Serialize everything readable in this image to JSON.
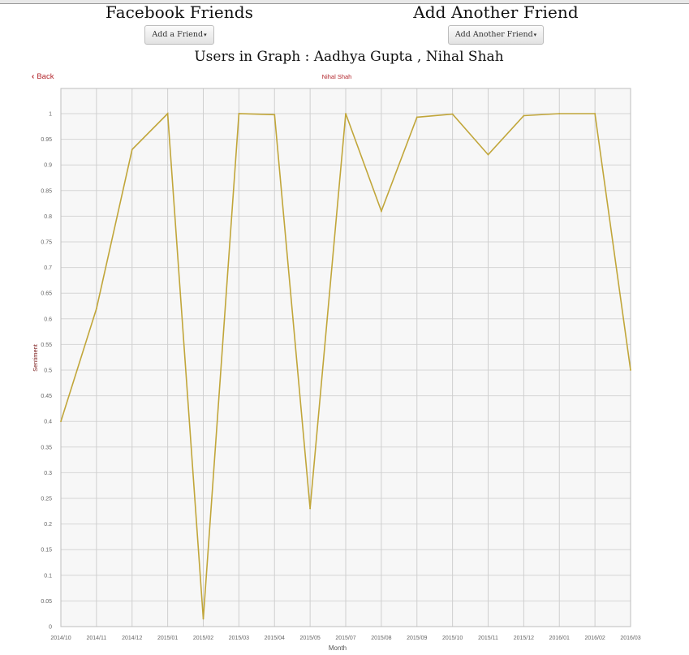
{
  "header": {
    "left_title": "Facebook Friends",
    "left_button": "Add a Friend",
    "right_title": "Add Another Friend",
    "right_button": "Add Another Friend",
    "caret": "▾"
  },
  "graph_title": "Users in Graph : Aadhya Gupta , Nihal Shah",
  "back_label": "Back",
  "chart_data": {
    "type": "line",
    "xlabel": "Month",
    "ylabel": "Sentiment",
    "ylim": [
      0,
      1
    ],
    "grid": true,
    "legend": "top-center",
    "x": [
      "2014/10",
      "2014/11",
      "2014/12",
      "2015/01",
      "2015/02",
      "2015/03",
      "2015/04",
      "2015/05",
      "2015/07",
      "2015/08",
      "2015/09",
      "2015/10",
      "2015/11",
      "2015/12",
      "2016/01",
      "2016/02",
      "2016/03"
    ],
    "yticks": [
      "0",
      "0.05",
      "0.1",
      "0.15",
      "0.2",
      "0.25",
      "0.3",
      "0.35",
      "0.4",
      "0.45",
      "0.5",
      "0.55",
      "0.6",
      "0.65",
      "0.7",
      "0.75",
      "0.8",
      "0.85",
      "0.9",
      "0.95",
      "1"
    ],
    "series": [
      {
        "name": "Nihal Shah",
        "color": "#c1a63a",
        "values": [
          0.4,
          0.62,
          0.93,
          1.0,
          0.015,
          1.0,
          0.998,
          0.23,
          1.0,
          0.81,
          0.993,
          0.999,
          0.92,
          0.996,
          1.0,
          1.0,
          0.5
        ]
      }
    ]
  }
}
